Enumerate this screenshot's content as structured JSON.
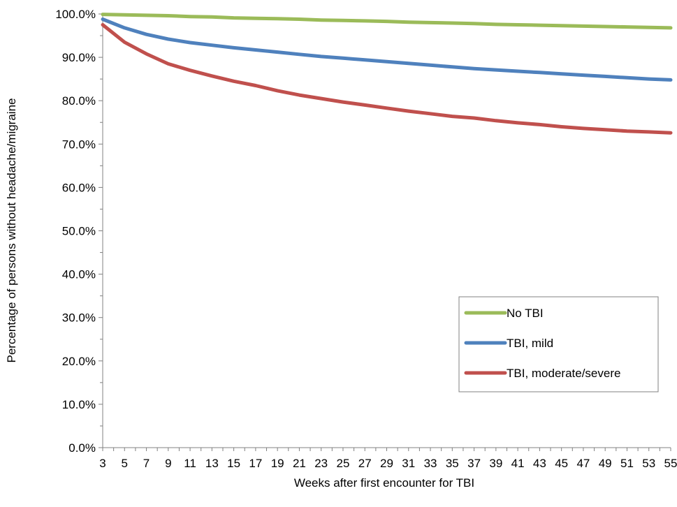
{
  "chart_data": {
    "type": "line",
    "title": "",
    "xlabel": "Weeks after first encounter for TBI",
    "ylabel": "Percentage of persons without headache/migraine",
    "xlim": [
      3,
      55
    ],
    "ylim": [
      0,
      100
    ],
    "x_ticks": [
      3,
      5,
      7,
      9,
      11,
      13,
      15,
      17,
      19,
      21,
      23,
      25,
      27,
      29,
      31,
      33,
      35,
      37,
      39,
      41,
      43,
      45,
      47,
      49,
      51,
      53,
      55
    ],
    "y_ticks": [
      0,
      10,
      20,
      30,
      40,
      50,
      60,
      70,
      80,
      90,
      100
    ],
    "y_tick_labels": [
      "0.0%",
      "10.0%",
      "20.0%",
      "30.0%",
      "40.0%",
      "50.0%",
      "60.0%",
      "70.0%",
      "80.0%",
      "90.0%",
      "100.0%"
    ],
    "grid": false,
    "legend_position": "lower-right",
    "x": [
      3,
      5,
      7,
      9,
      11,
      13,
      15,
      17,
      19,
      21,
      23,
      25,
      27,
      29,
      31,
      33,
      35,
      37,
      39,
      41,
      43,
      45,
      47,
      49,
      51,
      53,
      55
    ],
    "series": [
      {
        "name": "No TBI",
        "color": "#9bbb59",
        "values": [
          99.9,
          99.8,
          99.7,
          99.6,
          99.4,
          99.3,
          99.1,
          99.0,
          98.9,
          98.8,
          98.6,
          98.5,
          98.4,
          98.3,
          98.1,
          98.0,
          97.9,
          97.8,
          97.6,
          97.5,
          97.4,
          97.3,
          97.2,
          97.1,
          97.0,
          96.9,
          96.8
        ]
      },
      {
        "name": "TBI, mild",
        "color": "#4f81bd",
        "values": [
          98.8,
          96.8,
          95.3,
          94.2,
          93.4,
          92.8,
          92.2,
          91.7,
          91.2,
          90.7,
          90.2,
          89.8,
          89.4,
          89.0,
          88.6,
          88.2,
          87.8,
          87.4,
          87.1,
          86.8,
          86.5,
          86.2,
          85.9,
          85.6,
          85.3,
          85.0,
          84.8
        ]
      },
      {
        "name": "TBI, moderate/severe",
        "color": "#c0504d",
        "values": [
          97.5,
          93.5,
          90.8,
          88.5,
          87.0,
          85.7,
          84.5,
          83.5,
          82.3,
          81.3,
          80.5,
          79.7,
          79.0,
          78.3,
          77.6,
          77.0,
          76.4,
          76.0,
          75.4,
          74.9,
          74.5,
          74.0,
          73.6,
          73.3,
          73.0,
          72.8,
          72.6
        ]
      }
    ]
  }
}
